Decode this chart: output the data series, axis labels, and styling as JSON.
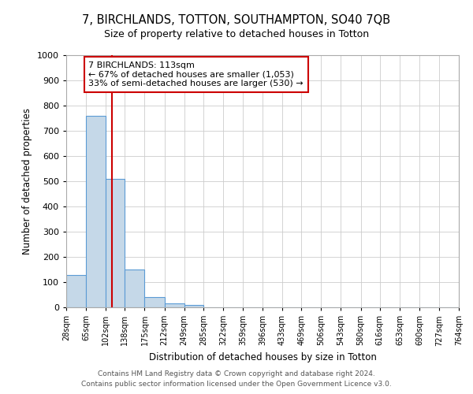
{
  "title1": "7, BIRCHLANDS, TOTTON, SOUTHAMPTON, SO40 7QB",
  "title2": "Size of property relative to detached houses in Totton",
  "xlabel": "Distribution of detached houses by size in Totton",
  "ylabel": "Number of detached properties",
  "bin_labels": [
    "28sqm",
    "65sqm",
    "102sqm",
    "138sqm",
    "175sqm",
    "212sqm",
    "249sqm",
    "285sqm",
    "322sqm",
    "359sqm",
    "396sqm",
    "433sqm",
    "469sqm",
    "506sqm",
    "543sqm",
    "580sqm",
    "616sqm",
    "653sqm",
    "690sqm",
    "727sqm",
    "764sqm"
  ],
  "bin_edges": [
    28,
    65,
    102,
    138,
    175,
    212,
    249,
    285,
    322,
    359,
    396,
    433,
    469,
    506,
    543,
    580,
    616,
    653,
    690,
    727,
    764
  ],
  "bar_heights": [
    128,
    760,
    510,
    150,
    40,
    15,
    10,
    0,
    0,
    0,
    0,
    0,
    0,
    0,
    0,
    0,
    0,
    0,
    0,
    0
  ],
  "bar_color": "#c5d8e8",
  "bar_edge_color": "#5b9bd5",
  "red_line_x": 113,
  "annotation_line1": "7 BIRCHLANDS: 113sqm",
  "annotation_line2": "← 67% of detached houses are smaller (1,053)",
  "annotation_line3": "33% of semi-detached houses are larger (530) →",
  "annotation_box_color": "#ffffff",
  "annotation_box_edge": "#cc0000",
  "red_line_color": "#cc0000",
  "ylim": [
    0,
    1000
  ],
  "yticks": [
    0,
    100,
    200,
    300,
    400,
    500,
    600,
    700,
    800,
    900,
    1000
  ],
  "footer1": "Contains HM Land Registry data © Crown copyright and database right 2024.",
  "footer2": "Contains public sector information licensed under the Open Government Licence v3.0.",
  "bg_color": "#ffffff",
  "grid_color": "#cccccc"
}
